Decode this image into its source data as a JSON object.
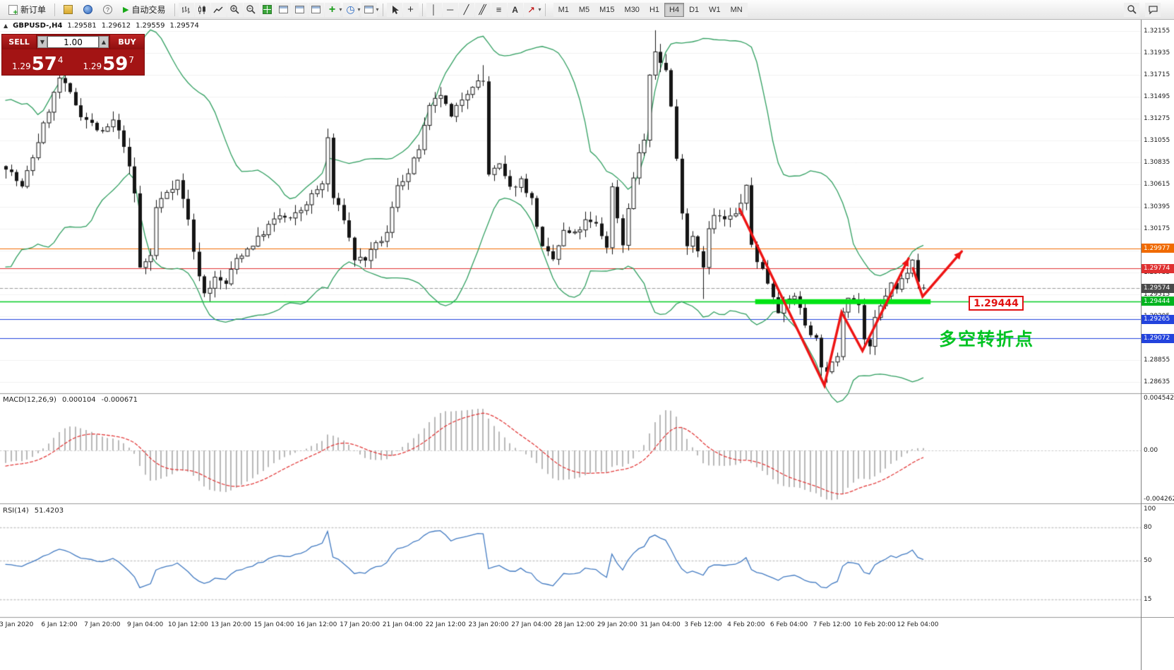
{
  "toolbar": {
    "new_order_label": "新订单",
    "auto_trading_label": "自动交易",
    "timeframes": [
      "M1",
      "M5",
      "M15",
      "M30",
      "H1",
      "H4",
      "D1",
      "W1",
      "MN"
    ],
    "active_timeframe": "H4",
    "icon_names": [
      "new-order",
      "metaeditor",
      "terminal",
      "help",
      "auto-trading-play",
      "bar-chart",
      "candlestick-chart",
      "line-chart",
      "zoom-in",
      "zoom-out",
      "tile-windows",
      "new-chart",
      "profiles",
      "window-layout",
      "add-indicator",
      "periods",
      "templates",
      "cursor",
      "crosshair",
      "vertical-line",
      "horizontal-line",
      "trendline",
      "equidistant-channel",
      "fibonacci",
      "text",
      "arrows",
      "search",
      "chat"
    ]
  },
  "chart_header": {
    "symbol": "GBPUSD-,H4",
    "open": "1.29581",
    "high": "1.29612",
    "low": "1.29559",
    "close": "1.29574"
  },
  "trade_panel": {
    "sell_label": "SELL",
    "buy_label": "BUY",
    "volume": "1.00",
    "step_down": "▼",
    "step_up": "▲",
    "sell_price_prefix": "1.29",
    "sell_price_big": "57",
    "sell_price_sup": "4",
    "buy_price_prefix": "1.29",
    "buy_price_big": "59",
    "buy_price_sup": "7"
  },
  "price_axis": {
    "grid_labels": [
      "1.32155",
      "1.31935",
      "1.31715",
      "1.31495",
      "1.31275",
      "1.31055",
      "1.30835",
      "1.30615",
      "1.30395",
      "1.30175",
      "1.29955",
      "1.29735",
      "1.29515",
      "1.29295",
      "1.29075",
      "1.28855",
      "1.28635"
    ],
    "tags": [
      {
        "text": "1.29977",
        "price": 1.29977,
        "bg": "#f06a00"
      },
      {
        "text": "1.29774",
        "price": 1.29774,
        "bg": "#e03030"
      },
      {
        "text": "1.29574",
        "price": 1.29574,
        "bg": "#4a4a4a"
      },
      {
        "text": "1.29444",
        "price": 1.29444,
        "bg": "#00b41e"
      },
      {
        "text": "1.29265",
        "price": 1.29265,
        "bg": "#2343dd"
      },
      {
        "text": "1.29072",
        "price": 1.29072,
        "bg": "#2343dd"
      }
    ]
  },
  "macd_panel": {
    "label": "MACD(12,26,9)",
    "value": "0.000104",
    "signal_value": "-0.000671",
    "scale": [
      {
        "text": "0.004542",
        "v": 0.004542
      },
      {
        "text": "0.00",
        "v": 0
      },
      {
        "text": "-0.004262",
        "v": -0.004262
      }
    ]
  },
  "rsi_panel": {
    "label": "RSI(14)",
    "value": "51.4203",
    "scale": [
      {
        "text": "100",
        "v": 100
      },
      {
        "text": "80",
        "v": 80
      },
      {
        "text": "50",
        "v": 50
      },
      {
        "text": "15",
        "v": 15
      }
    ],
    "levels": [
      80,
      50,
      15
    ]
  },
  "time_axis": {
    "labels": [
      "3 Jan 2020",
      "6 Jan 12:00",
      "7 Jan 20:00",
      "9 Jan 04:00",
      "10 Jan 12:00",
      "13 Jan 20:00",
      "15 Jan 04:00",
      "16 Jan 12:00",
      "17 Jan 20:00",
      "21 Jan 04:00",
      "22 Jan 12:00",
      "23 Jan 20:00",
      "27 Jan 04:00",
      "28 Jan 12:00",
      "29 Jan 20:00",
      "31 Jan 04:00",
      "3 Feb 12:00",
      "4 Feb 20:00",
      "6 Feb 04:00",
      "7 Feb 12:00",
      "10 Feb 20:00",
      "12 Feb 04:00"
    ],
    "first_candle_index": 2,
    "candles_per_label": 8
  },
  "annotations": {
    "price_label_box": "1.29444",
    "cn_text": "多空转折点",
    "zone": {
      "price": 1.29444,
      "i1": 139.7,
      "i2": 172.4
    },
    "arrows": {
      "poly1": [
        [
          136.8,
          1.3037
        ],
        [
          152.6,
          1.286
        ],
        [
          155.8,
          1.29336
        ],
        [
          159.7,
          1.28947
        ],
        [
          168.3,
          1.29874
        ]
      ],
      "poly2": [
        [
          169.1,
          1.29775
        ],
        [
          170.9,
          1.29492
        ],
        [
          178.2,
          1.29945
        ]
      ]
    }
  },
  "colors": {
    "bull_body": "#ffffff",
    "bear_body": "#151515",
    "candle_outline": "#151515",
    "bollinger": "#2f9e5f",
    "macd_hist": "#b8b8b8",
    "macd_signal": "#e23b3b",
    "rsi": "#4079c1",
    "annotation": "#ee1414",
    "note_green": "#00c322",
    "zone_green": "#00e414",
    "grid": "#f0f0f0"
  },
  "chart_data": {
    "type": "candlestick",
    "symbol": "GBPUSD",
    "timeframe": "H4",
    "title": "GBPUSD-,H4",
    "ylim": [
      1.28522,
      1.32268
    ],
    "current_ohlc": {
      "open": 1.29581,
      "high": 1.29612,
      "low": 1.29559,
      "close": 1.29574
    },
    "total_candles": 172,
    "price_path": [
      [
        0,
        1.308
      ],
      [
        3,
        1.3058
      ],
      [
        6,
        1.3105
      ],
      [
        10,
        1.3168
      ],
      [
        12,
        1.3152
      ],
      [
        14,
        1.3132
      ],
      [
        16,
        1.3122
      ],
      [
        18,
        1.3112
      ],
      [
        20,
        1.3125
      ],
      [
        22,
        1.3102
      ],
      [
        24,
        1.3052
      ],
      [
        25,
        1.2978
      ],
      [
        27,
        1.299
      ],
      [
        28,
        1.3038
      ],
      [
        30,
        1.3055
      ],
      [
        32,
        1.3065
      ],
      [
        34,
        1.3028
      ],
      [
        35,
        1.2992
      ],
      [
        37,
        1.2952
      ],
      [
        39,
        1.2967
      ],
      [
        41,
        1.2962
      ],
      [
        43,
        1.2987
      ],
      [
        45,
        1.2997
      ],
      [
        47,
        1.3007
      ],
      [
        49,
        1.302
      ],
      [
        51,
        1.303
      ],
      [
        53,
        1.3026
      ],
      [
        55,
        1.3036
      ],
      [
        57,
        1.305
      ],
      [
        59,
        1.3062
      ],
      [
        60,
        1.3108
      ],
      [
        61,
        1.3048
      ],
      [
        63,
        1.3028
      ],
      [
        65,
        1.2987
      ],
      [
        67,
        1.2987
      ],
      [
        69,
        1.3
      ],
      [
        71,
        1.3012
      ],
      [
        73,
        1.3062
      ],
      [
        75,
        1.3072
      ],
      [
        77,
        1.3098
      ],
      [
        79,
        1.3138
      ],
      [
        81,
        1.3152
      ],
      [
        83,
        1.3128
      ],
      [
        85,
        1.3148
      ],
      [
        87,
        1.3162
      ],
      [
        89,
        1.3165
      ],
      [
        90,
        1.3072
      ],
      [
        92,
        1.308
      ],
      [
        94,
        1.3057
      ],
      [
        96,
        1.3066
      ],
      [
        98,
        1.3046
      ],
      [
        100,
        1.2997
      ],
      [
        102,
        1.2986
      ],
      [
        104,
        1.3014
      ],
      [
        106,
        1.3011
      ],
      [
        108,
        1.3024
      ],
      [
        110,
        1.3021
      ],
      [
        112,
        1.3
      ],
      [
        113,
        1.3058
      ],
      [
        115,
        1.3001
      ],
      [
        116,
        1.304
      ],
      [
        118,
        1.3094
      ],
      [
        119,
        1.3106
      ],
      [
        120,
        1.3168
      ],
      [
        121,
        1.3195
      ],
      [
        123,
        1.3176
      ],
      [
        124,
        1.314
      ],
      [
        125,
        1.3086
      ],
      [
        126,
        1.3036
      ],
      [
        127,
        1.3001
      ],
      [
        128,
        1.3011
      ],
      [
        130,
        1.2981
      ],
      [
        131,
        1.3016
      ],
      [
        132,
        1.303
      ],
      [
        134,
        1.3026
      ],
      [
        136,
        1.3031
      ],
      [
        138,
        1.3058
      ],
      [
        139,
        1.3001
      ],
      [
        140,
        1.2986
      ],
      [
        141,
        1.2976
      ],
      [
        143,
        1.2951
      ],
      [
        144,
        1.2936
      ],
      [
        145,
        1.2941
      ],
      [
        147,
        1.2951
      ],
      [
        148,
        1.2936
      ],
      [
        149,
        1.2921
      ],
      [
        151,
        1.2906
      ],
      [
        152,
        1.2881
      ],
      [
        153,
        1.2871
      ],
      [
        155,
        1.2891
      ],
      [
        156,
        1.2936
      ],
      [
        157,
        1.2951
      ],
      [
        159,
        1.2941
      ],
      [
        160,
        1.2906
      ],
      [
        161,
        1.2896
      ],
      [
        162,
        1.2926
      ],
      [
        164,
        1.2951
      ],
      [
        165,
        1.2961
      ],
      [
        166,
        1.2956
      ],
      [
        168,
        1.2976
      ],
      [
        169,
        1.2989
      ],
      [
        170,
        1.2966
      ],
      [
        171,
        1.29574
      ]
    ],
    "wick_overrides": [
      {
        "i": 10,
        "h": 1.3177
      },
      {
        "i": 89,
        "h": 1.3181
      },
      {
        "i": 121,
        "h": 1.3216
      },
      {
        "i": 130,
        "l": 1.2947
      },
      {
        "i": 153,
        "l": 1.2863
      }
    ],
    "history_closes": [
      1.3129,
      1.3062,
      1.2996,
      1.3006,
      1.3061,
      1.3119,
      1.3136,
      1.3101,
      1.3051,
      1.3011,
      1.2999,
      1.3021,
      1.3071,
      1.3111,
      1.3126,
      1.3091,
      1.3056,
      1.3031,
      1.3051,
      1.3072
    ],
    "overlays": {
      "bollinger": {
        "period": 20,
        "deviation": 2
      }
    },
    "indicators": {
      "macd": {
        "fast": 12,
        "slow": 26,
        "signal": 9,
        "range": [
          -0.004262,
          0.004542
        ]
      },
      "rsi": {
        "period": 14,
        "range": [
          0,
          100
        ]
      }
    },
    "levels": [
      {
        "price": 1.29977,
        "color": "#f06a00",
        "style": "solid"
      },
      {
        "price": 1.29774,
        "color": "#e03030",
        "style": "solid"
      },
      {
        "price": 1.29574,
        "color": "#9a9a9a",
        "style": "dash"
      },
      {
        "price": 1.29444,
        "color": "#00cc22",
        "style": "solid"
      },
      {
        "price": 1.29265,
        "color": "#2343dd",
        "style": "solid"
      },
      {
        "price": 1.29072,
        "color": "#2343dd",
        "style": "solid"
      }
    ]
  }
}
